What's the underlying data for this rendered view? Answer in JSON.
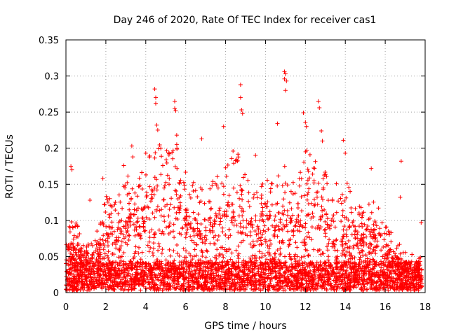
{
  "chart_data": {
    "type": "scatter",
    "title": "Day 246 of 2020, Rate Of TEC Index for receiver cas1",
    "xlabel": "GPS time / hours",
    "ylabel": "ROTI / TECUs",
    "xlim": [
      0,
      18
    ],
    "ylim": [
      0,
      0.35
    ],
    "x_ticks": [
      0,
      2,
      4,
      6,
      8,
      10,
      12,
      14,
      16,
      18
    ],
    "x_tick_labels": [
      "0",
      "2",
      "4",
      "6",
      "8",
      "10",
      "12",
      "14",
      "16",
      "18"
    ],
    "y_ticks": [
      0,
      0.05,
      0.1,
      0.15,
      0.2,
      0.25,
      0.3,
      0.35
    ],
    "y_tick_labels": [
      "0",
      "0.05",
      "0.1",
      "0.15",
      "0.2",
      "0.25",
      "0.3",
      "0.35"
    ],
    "grid": true,
    "marker": "+",
    "series_color": "#ff0000",
    "series": [
      {
        "name": "ROTI",
        "envelope_x": [
          0,
          0.5,
          1,
          1.5,
          2,
          2.5,
          3,
          3.5,
          4,
          4.5,
          5,
          5.5,
          6,
          6.5,
          7,
          7.5,
          8,
          8.5,
          9,
          9.5,
          10,
          10.5,
          11,
          11.5,
          12,
          12.5,
          13,
          13.5,
          14,
          14.5,
          15,
          15.5,
          16,
          16.5,
          17,
          17.5,
          18
        ],
        "envelope_y": [
          0.09,
          0.1,
          0.06,
          0.08,
          0.13,
          0.12,
          0.16,
          0.15,
          0.17,
          0.21,
          0.19,
          0.2,
          0.16,
          0.15,
          0.14,
          0.15,
          0.17,
          0.2,
          0.16,
          0.15,
          0.15,
          0.16,
          0.17,
          0.14,
          0.2,
          0.18,
          0.16,
          0.15,
          0.15,
          0.12,
          0.11,
          0.13,
          0.1,
          0.07,
          0.06,
          0.05,
          0.06
        ],
        "highlights": [
          {
            "x": 0.25,
            "y": 0.175
          },
          {
            "x": 0.3,
            "y": 0.17
          },
          {
            "x": 1.2,
            "y": 0.128
          },
          {
            "x": 1.85,
            "y": 0.158
          },
          {
            "x": 2.9,
            "y": 0.176
          },
          {
            "x": 3.3,
            "y": 0.203
          },
          {
            "x": 3.35,
            "y": 0.188
          },
          {
            "x": 4.0,
            "y": 0.193
          },
          {
            "x": 4.45,
            "y": 0.282
          },
          {
            "x": 4.5,
            "y": 0.27
          },
          {
            "x": 4.5,
            "y": 0.262
          },
          {
            "x": 4.55,
            "y": 0.232
          },
          {
            "x": 4.6,
            "y": 0.225
          },
          {
            "x": 5.45,
            "y": 0.265
          },
          {
            "x": 5.45,
            "y": 0.255
          },
          {
            "x": 5.5,
            "y": 0.252
          },
          {
            "x": 5.55,
            "y": 0.218
          },
          {
            "x": 6.8,
            "y": 0.213
          },
          {
            "x": 7.9,
            "y": 0.23
          },
          {
            "x": 8.75,
            "y": 0.288
          },
          {
            "x": 8.75,
            "y": 0.27
          },
          {
            "x": 8.8,
            "y": 0.253
          },
          {
            "x": 8.85,
            "y": 0.248
          },
          {
            "x": 9.5,
            "y": 0.19
          },
          {
            "x": 10.6,
            "y": 0.234
          },
          {
            "x": 10.95,
            "y": 0.306
          },
          {
            "x": 11.0,
            "y": 0.303
          },
          {
            "x": 10.95,
            "y": 0.296
          },
          {
            "x": 11.05,
            "y": 0.293
          },
          {
            "x": 11.0,
            "y": 0.28
          },
          {
            "x": 11.9,
            "y": 0.249
          },
          {
            "x": 12.0,
            "y": 0.236
          },
          {
            "x": 12.05,
            "y": 0.23
          },
          {
            "x": 12.65,
            "y": 0.265
          },
          {
            "x": 12.7,
            "y": 0.256
          },
          {
            "x": 12.8,
            "y": 0.224
          },
          {
            "x": 12.85,
            "y": 0.21
          },
          {
            "x": 13.9,
            "y": 0.211
          },
          {
            "x": 14.0,
            "y": 0.193
          },
          {
            "x": 15.3,
            "y": 0.172
          },
          {
            "x": 16.8,
            "y": 0.182
          },
          {
            "x": 16.75,
            "y": 0.132
          },
          {
            "x": 17.8,
            "y": 0.097
          }
        ]
      }
    ]
  }
}
